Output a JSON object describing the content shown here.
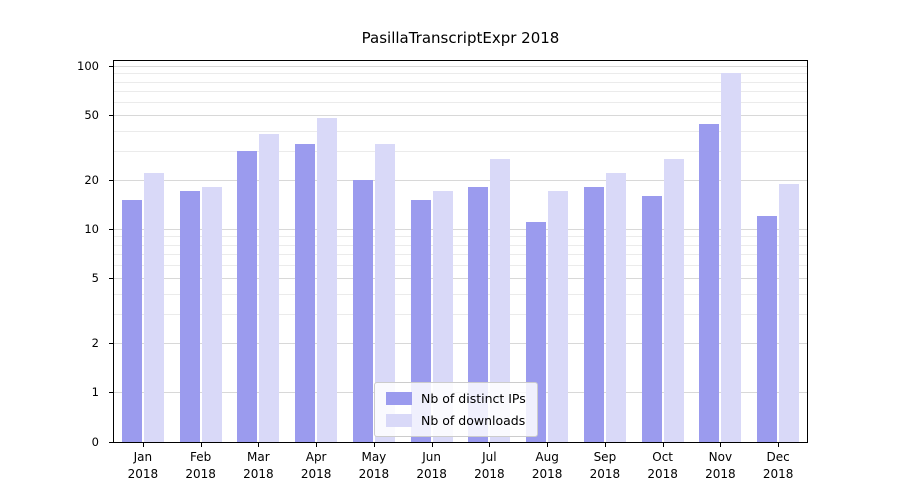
{
  "title": "PasillaTranscriptExpr 2018",
  "x_axis": {
    "year": "2018",
    "months": [
      "Jan",
      "Feb",
      "Mar",
      "Apr",
      "May",
      "Jun",
      "Jul",
      "Aug",
      "Sep",
      "Oct",
      "Nov",
      "Dec"
    ]
  },
  "y_axis": {
    "ticks": [
      0,
      1,
      2,
      5,
      10,
      20,
      50,
      100
    ],
    "minor_gridlines": [
      3,
      4,
      6,
      7,
      8,
      9,
      30,
      40,
      60,
      70,
      80,
      90
    ]
  },
  "legend": {
    "items": [
      "Nb of distinct IPs",
      "Nb of downloads"
    ]
  },
  "colors": {
    "distinct_ips": "#9b9bee",
    "downloads": "#d9d9f8",
    "grid_major": "#d8d8d8",
    "grid_minor": "#ebebeb"
  },
  "chart_data": {
    "type": "bar",
    "title": "PasillaTranscriptExpr 2018",
    "categories": [
      "Jan 2018",
      "Feb 2018",
      "Mar 2018",
      "Apr 2018",
      "May 2018",
      "Jun 2018",
      "Jul 2018",
      "Aug 2018",
      "Sep 2018",
      "Oct 2018",
      "Nov 2018",
      "Dec 2018"
    ],
    "series": [
      {
        "name": "Nb of distinct IPs",
        "color": "#9b9bee",
        "values": [
          15,
          17,
          30,
          33,
          20,
          15,
          18,
          11,
          18,
          16,
          44,
          12
        ]
      },
      {
        "name": "Nb of downloads",
        "color": "#d9d9f8",
        "values": [
          22,
          18,
          38,
          48,
          33,
          17,
          27,
          17,
          22,
          27,
          90,
          19
        ]
      }
    ],
    "yscale": "log",
    "ylim": [
      0,
      100
    ],
    "y_ticks": [
      0,
      1,
      2,
      5,
      10,
      20,
      50,
      100
    ],
    "grid": true,
    "legend_position": "lower center"
  }
}
